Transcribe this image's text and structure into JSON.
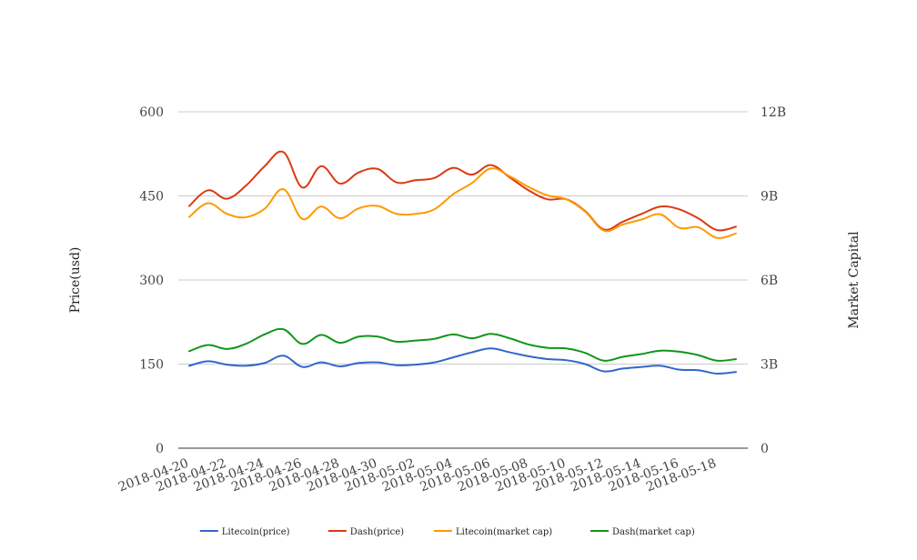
{
  "chart_data": {
    "type": "line",
    "title": "",
    "ylabel_left": "Price(usd)",
    "ylabel_right": "Market Capital",
    "ylim_left": [
      0,
      600
    ],
    "ylim_right": [
      0,
      12000000000
    ],
    "left_ticks": [
      {
        "value": 0,
        "label": "0"
      },
      {
        "value": 150,
        "label": "150"
      },
      {
        "value": 300,
        "label": "300"
      },
      {
        "value": 450,
        "label": "450"
      },
      {
        "value": 600,
        "label": "600"
      }
    ],
    "right_ticks": [
      {
        "value": 0,
        "label": "0"
      },
      {
        "value": 3000000000,
        "label": "3B"
      },
      {
        "value": 6000000000,
        "label": "6B"
      },
      {
        "value": 9000000000,
        "label": "9B"
      },
      {
        "value": 12000000000,
        "label": "12B"
      }
    ],
    "x_tick_labels": [
      "2018-04-20",
      "2018-04-22",
      "2018-04-24",
      "2018-04-26",
      "2018-04-28",
      "2018-04-30",
      "2018-05-02",
      "2018-05-04",
      "2018-05-06",
      "2018-05-08",
      "2018-05-10",
      "2018-05-12",
      "2018-05-14",
      "2018-05-16",
      "2018-05-18"
    ],
    "x": [
      "2018-04-20",
      "2018-04-21",
      "2018-04-22",
      "2018-04-23",
      "2018-04-24",
      "2018-04-25",
      "2018-04-26",
      "2018-04-27",
      "2018-04-28",
      "2018-04-29",
      "2018-04-30",
      "2018-05-01",
      "2018-05-02",
      "2018-05-03",
      "2018-05-04",
      "2018-05-05",
      "2018-05-06",
      "2018-05-07",
      "2018-05-08",
      "2018-05-09",
      "2018-05-10",
      "2018-05-11",
      "2018-05-12",
      "2018-05-13",
      "2018-05-14",
      "2018-05-15",
      "2018-05-16",
      "2018-05-17",
      "2018-05-18",
      "2018-05-19"
    ],
    "grid": true,
    "legend_position": "bottom",
    "series": [
      {
        "name": "Litecoin(price)",
        "axis": "left",
        "color": "#3366cc",
        "values": [
          147,
          155,
          149,
          147,
          152,
          165,
          145,
          153,
          146,
          152,
          153,
          148,
          149,
          153,
          162,
          171,
          178,
          171,
          164,
          159,
          157,
          150,
          137,
          142,
          145,
          147,
          140,
          139,
          133,
          136
        ]
      },
      {
        "name": "Dash(price)",
        "axis": "left",
        "color": "#dc3912",
        "values": [
          432,
          460,
          445,
          468,
          503,
          528,
          465,
          503,
          472,
          492,
          498,
          474,
          478,
          482,
          500,
          488,
          505,
          483,
          460,
          444,
          444,
          423,
          390,
          404,
          418,
          431,
          426,
          410,
          389,
          395
        ]
      },
      {
        "name": "Litecoin(market cap)",
        "axis": "right",
        "color": "#ff9900",
        "values": [
          8250000000,
          8740000000,
          8360000000,
          8240000000,
          8540000000,
          9240000000,
          8180000000,
          8620000000,
          8200000000,
          8560000000,
          8640000000,
          8360000000,
          8360000000,
          8520000000,
          9060000000,
          9460000000,
          9980000000,
          9700000000,
          9320000000,
          9020000000,
          8880000000,
          8440000000,
          7760000000,
          7980000000,
          8160000000,
          8340000000,
          7860000000,
          7880000000,
          7500000000,
          7660000000
        ]
      },
      {
        "name": "Dash(market cap)",
        "axis": "right",
        "color": "#109618",
        "values": [
          3460000000,
          3680000000,
          3540000000,
          3720000000,
          4060000000,
          4240000000,
          3720000000,
          4040000000,
          3760000000,
          3980000000,
          3980000000,
          3800000000,
          3840000000,
          3900000000,
          4060000000,
          3920000000,
          4080000000,
          3920000000,
          3700000000,
          3580000000,
          3560000000,
          3400000000,
          3120000000,
          3260000000,
          3360000000,
          3480000000,
          3440000000,
          3320000000,
          3120000000,
          3180000000
        ]
      }
    ]
  }
}
